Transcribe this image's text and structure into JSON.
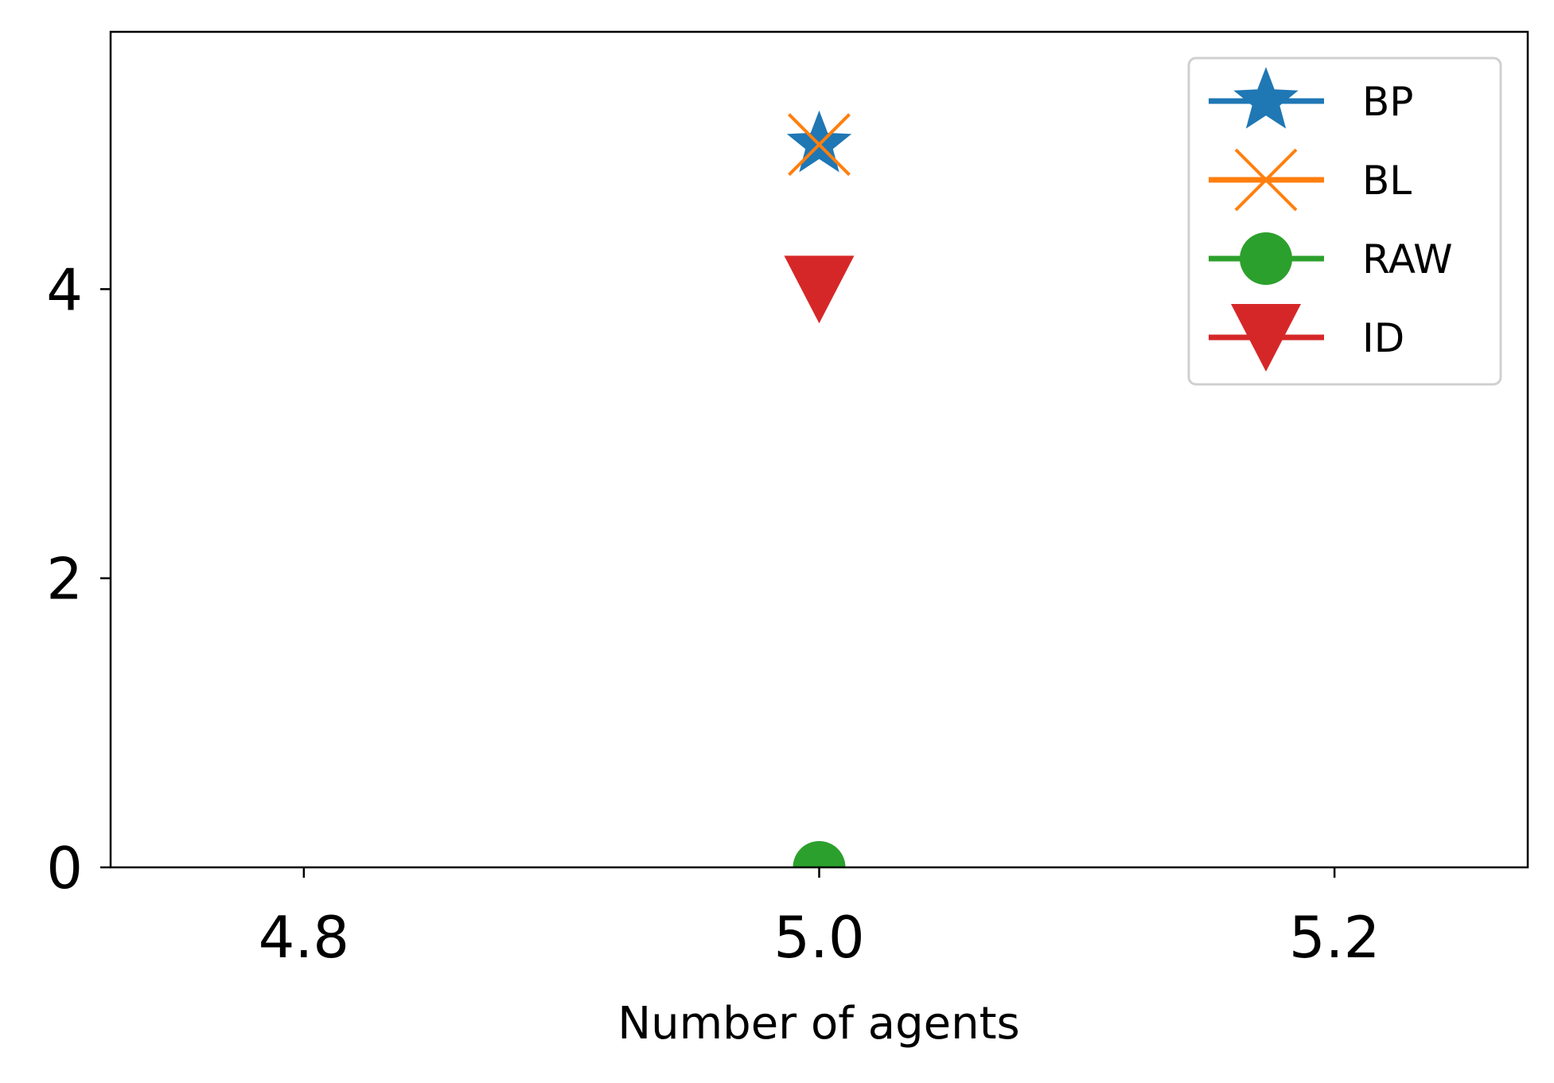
{
  "chart_data": {
    "type": "scatter",
    "title": "",
    "xlabel": "Number of agents",
    "ylabel": "",
    "xlim": [
      4.725,
      5.275
    ],
    "ylim": [
      0,
      5.78
    ],
    "xticks": [
      4.8,
      5.0,
      5.2
    ],
    "xtick_labels": [
      "4.8",
      "5.0",
      "5.2"
    ],
    "yticks": [
      0,
      2,
      4
    ],
    "ytick_labels": [
      "0",
      "2",
      "4"
    ],
    "grid": false,
    "legend_position": "top-right",
    "series": [
      {
        "name": "BP",
        "marker": "star",
        "color": "#1f77b4",
        "x": [
          5.0
        ],
        "y": [
          5.0
        ]
      },
      {
        "name": "BL",
        "marker": "x",
        "color": "#ff7f0e",
        "x": [
          5.0
        ],
        "y": [
          5.0
        ]
      },
      {
        "name": "RAW",
        "marker": "circle",
        "color": "#2ca02c",
        "x": [
          5.0
        ],
        "y": [
          0.0
        ]
      },
      {
        "name": "ID",
        "marker": "triangle-down",
        "color": "#d62728",
        "x": [
          5.0
        ],
        "y": [
          4.0
        ]
      }
    ]
  }
}
